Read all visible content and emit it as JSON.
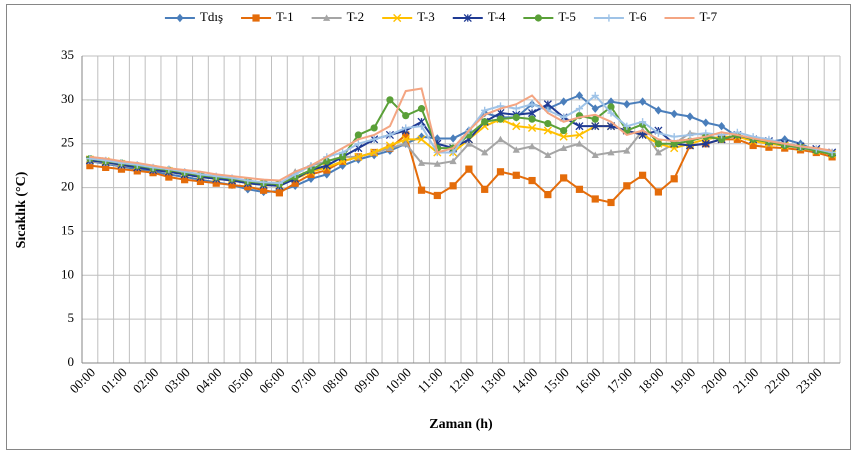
{
  "chart_data": {
    "type": "line",
    "x_label": "Zaman (h)",
    "y_label": "Sıcaklık (°C)",
    "categories": [
      "00:00",
      null,
      "01:00",
      null,
      "02:00",
      null,
      "03:00",
      null,
      "04:00",
      null,
      "05:00",
      null,
      "06:00",
      null,
      "07:00",
      null,
      "08:00",
      null,
      "09:00",
      null,
      "10:00",
      null,
      "11:00",
      null,
      "12:00",
      null,
      "13:00",
      null,
      "14:00",
      null,
      "15:00",
      null,
      "16:00",
      null,
      "17:00",
      null,
      "18:00",
      null,
      "19:00",
      null,
      "20:00",
      null,
      "21:00",
      null,
      "22:00",
      null,
      "23:00",
      null
    ],
    "ylim": [
      0,
      35
    ],
    "yticks": [
      0,
      5,
      10,
      15,
      20,
      25,
      30,
      35
    ],
    "grid": true,
    "legend": "top",
    "series": [
      {
        "name": "Tdış",
        "color": "#4a7ebb",
        "marker": "diamond",
        "values": [
          23,
          22.7,
          22.4,
          22.1,
          21.8,
          21.5,
          21.2,
          20.9,
          20.6,
          20.3,
          19.8,
          19.5,
          19.6,
          20.2,
          21,
          21.5,
          22.5,
          23.2,
          23.7,
          24.2,
          25,
          25.8,
          25.6,
          25.6,
          26.5,
          28.5,
          28,
          28,
          29.5,
          29,
          29.8,
          30.5,
          29,
          29.8,
          29.5,
          29.8,
          28.8,
          28.4,
          28.1,
          27.4,
          27,
          25.8,
          25.5,
          25.2,
          25.5,
          25,
          24.2,
          23.8
        ]
      },
      {
        "name": "T-1",
        "color": "#e46c0a",
        "marker": "square",
        "values": [
          22.5,
          22.3,
          22.1,
          21.9,
          21.7,
          21.2,
          20.9,
          20.7,
          20.5,
          20.3,
          20.1,
          19.7,
          19.4,
          20.5,
          21.5,
          22,
          23,
          23.5,
          24,
          24.5,
          26,
          19.7,
          19.1,
          20.2,
          22.1,
          19.8,
          21.8,
          21.4,
          20.8,
          19.2,
          21.1,
          19.8,
          18.7,
          18.3,
          20.2,
          21.4,
          19.5,
          21,
          24.8,
          25,
          25.5,
          25.5,
          24.8,
          24.6,
          24.5,
          24.3,
          24,
          23.5
        ]
      },
      {
        "name": "T-2",
        "color": "#a5a5a5",
        "marker": "triangle",
        "values": [
          23,
          22.8,
          22.5,
          22.3,
          22,
          21.8,
          21.5,
          21.3,
          21,
          20.8,
          20.5,
          20.3,
          20.2,
          21.8,
          22.5,
          23,
          23.5,
          23.5,
          24,
          24.5,
          25,
          22.8,
          22.7,
          23,
          25,
          24,
          25.5,
          24.3,
          24.7,
          23.7,
          24.5,
          25,
          23.7,
          24,
          24.2,
          26.5,
          24,
          25,
          26.2,
          26,
          25.5,
          26,
          25.5,
          25,
          24.8,
          24.5,
          24.2,
          23.8
        ]
      },
      {
        "name": "T-3",
        "color": "#ffc000",
        "marker": "x",
        "values": [
          23.2,
          23,
          22.7,
          22.4,
          22.1,
          21.9,
          21.6,
          21.3,
          21.1,
          20.9,
          20.6,
          20.4,
          20.3,
          21,
          21.8,
          22.3,
          23,
          23.5,
          24,
          24.8,
          25.5,
          25.5,
          24,
          24,
          25.5,
          27,
          27.8,
          27,
          26.8,
          26.5,
          25.8,
          26,
          27,
          27,
          26.5,
          26,
          25,
          24.5,
          25,
          25.5,
          25.8,
          25.8,
          25.3,
          25,
          24.8,
          24.6,
          24.2,
          23.8
        ]
      },
      {
        "name": "T-4",
        "color": "#1f3a93",
        "marker": "star",
        "values": [
          23.1,
          22.9,
          22.6,
          22.3,
          22,
          21.8,
          21.5,
          21.2,
          21,
          20.8,
          20.5,
          20.3,
          20.2,
          21,
          22,
          22.5,
          23.5,
          24.5,
          25.5,
          26,
          26.5,
          27.5,
          25,
          24.5,
          25.5,
          27.5,
          28.5,
          28.3,
          28.5,
          29.5,
          28,
          27,
          27,
          27,
          26.5,
          26,
          26.5,
          25,
          24.8,
          25,
          25.5,
          26,
          25.5,
          25.3,
          25,
          24.7,
          24.4,
          24
        ]
      },
      {
        "name": "T-5",
        "color": "#5aa038",
        "marker": "circle",
        "values": [
          23.3,
          23,
          22.8,
          22.5,
          22.2,
          22,
          21.7,
          21.4,
          21.2,
          21,
          20.7,
          20.5,
          20.4,
          21.2,
          22,
          23,
          23.5,
          26,
          26.8,
          30,
          28.2,
          29,
          24.5,
          24.5,
          26,
          27.5,
          27.8,
          28,
          27.8,
          27.3,
          26.5,
          28.2,
          27.8,
          29.2,
          26.5,
          27.2,
          25,
          25,
          25.3,
          25.8,
          25.5,
          26,
          25.5,
          25.2,
          24.8,
          24.6,
          24.2,
          23.8
        ]
      },
      {
        "name": "T-6",
        "color": "#9fc3e7",
        "marker": "plus",
        "values": [
          23.3,
          23.1,
          22.8,
          22.6,
          22.3,
          22.1,
          21.8,
          21.5,
          21.3,
          21.1,
          20.8,
          20.6,
          20.5,
          21.5,
          22.5,
          23.5,
          24,
          25,
          25.5,
          26,
          26.8,
          27,
          24,
          24,
          26.5,
          28.8,
          29.3,
          29,
          29.5,
          28.8,
          28,
          29,
          30.5,
          28.5,
          27,
          27.5,
          26.2,
          25.8,
          26,
          26.2,
          26,
          26.3,
          25.8,
          25.5,
          25,
          24.7,
          24.4,
          24
        ]
      },
      {
        "name": "T-7",
        "color": "#f4a582",
        "marker": "none",
        "values": [
          23.5,
          23.3,
          23,
          22.8,
          22.5,
          22.2,
          22,
          21.8,
          21.5,
          21.3,
          21.1,
          20.9,
          20.8,
          21.8,
          22.5,
          23.5,
          24.5,
          25.5,
          26,
          27,
          31,
          31.3,
          24,
          24.5,
          26.5,
          28.3,
          29,
          29.5,
          30.5,
          28.5,
          27.5,
          28,
          28.3,
          27.5,
          26,
          26.5,
          25.5,
          25.3,
          25.5,
          25.8,
          26.3,
          26,
          25.6,
          25.3,
          25,
          24.7,
          24.5,
          24.2
        ]
      }
    ]
  }
}
